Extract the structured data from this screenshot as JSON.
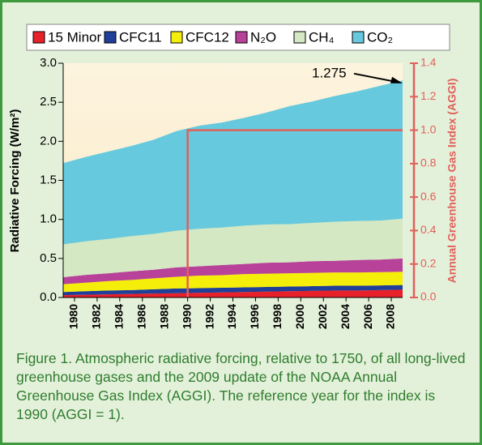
{
  "chart_data": {
    "type": "stacked-area",
    "y_label": "Radiative Forcing (W/m²)",
    "y2_label": "Annual Greenhouse Gas Index (AGGI)",
    "x": [
      1979,
      1981,
      1983,
      1985,
      1987,
      1989,
      1991,
      1993,
      1995,
      1997,
      1999,
      2001,
      2003,
      2005,
      2007,
      2009
    ],
    "series": [
      {
        "name": "15 Minor",
        "color": "#e8202a",
        "values": [
          0.03,
          0.035,
          0.04,
          0.045,
          0.05,
          0.055,
          0.06,
          0.065,
          0.07,
          0.075,
          0.08,
          0.085,
          0.09,
          0.09,
          0.095,
          0.1
        ]
      },
      {
        "name": "CFC11",
        "color": "#1f3f99",
        "values": [
          0.04,
          0.045,
          0.05,
          0.05,
          0.055,
          0.06,
          0.06,
          0.06,
          0.06,
          0.06,
          0.06,
          0.06,
          0.06,
          0.06,
          0.06,
          0.06
        ]
      },
      {
        "name": "CFC12",
        "color": "#f5ee0a",
        "values": [
          0.1,
          0.11,
          0.12,
          0.13,
          0.14,
          0.15,
          0.16,
          0.16,
          0.17,
          0.17,
          0.17,
          0.17,
          0.17,
          0.17,
          0.17,
          0.17
        ]
      },
      {
        "name": "N₂O",
        "color": "#b8429a",
        "values": [
          0.09,
          0.1,
          0.1,
          0.11,
          0.11,
          0.12,
          0.12,
          0.13,
          0.13,
          0.14,
          0.14,
          0.15,
          0.15,
          0.16,
          0.16,
          0.17
        ]
      },
      {
        "name": "CH₄",
        "color": "#d3e8c3",
        "values": [
          0.42,
          0.43,
          0.44,
          0.45,
          0.46,
          0.47,
          0.48,
          0.48,
          0.49,
          0.49,
          0.49,
          0.49,
          0.5,
          0.5,
          0.5,
          0.51
        ]
      },
      {
        "name": "CO₂",
        "color": "#66c9de",
        "values": [
          1.04,
          1.08,
          1.12,
          1.155,
          1.205,
          1.275,
          1.32,
          1.345,
          1.38,
          1.435,
          1.51,
          1.555,
          1.61,
          1.66,
          1.725,
          1.77
        ]
      }
    ],
    "xlim": [
      1979,
      2009
    ],
    "xticks": [
      1980,
      1982,
      1984,
      1986,
      1988,
      1990,
      1992,
      1994,
      1996,
      1998,
      2000,
      2002,
      2004,
      2006,
      2008
    ],
    "ylim": [
      0,
      3
    ],
    "yticks": [
      {
        "value": 0,
        "label": "0.0"
      },
      0.5,
      {
        "value": 1,
        "label": "1.0"
      },
      1.5,
      {
        "value": 2,
        "label": "2.0"
      },
      2.5,
      {
        "value": 3,
        "label": "3.0"
      }
    ],
    "y2lim": [
      0,
      1.4
    ],
    "y2ticks": [
      {
        "value": 0,
        "label": "0.0"
      },
      0.2,
      0.4,
      0.6,
      0.8,
      {
        "value": 1,
        "label": "1.0"
      },
      1.2,
      1.4
    ],
    "y2_color": "#e0605a",
    "reference": {
      "x": 1990,
      "y2": 1
    },
    "annotation": {
      "label": "1.275",
      "value": 1.275,
      "x": 2009
    },
    "caption": "Figure 1. Atmospheric radiative forcing, relative to 1750, of all long-lived greenhouse gases and the 2009 update of the NOAA Annual Greenhouse Gas Index (AGGI). The reference year for the index is 1990 (AGGI = 1)."
  }
}
